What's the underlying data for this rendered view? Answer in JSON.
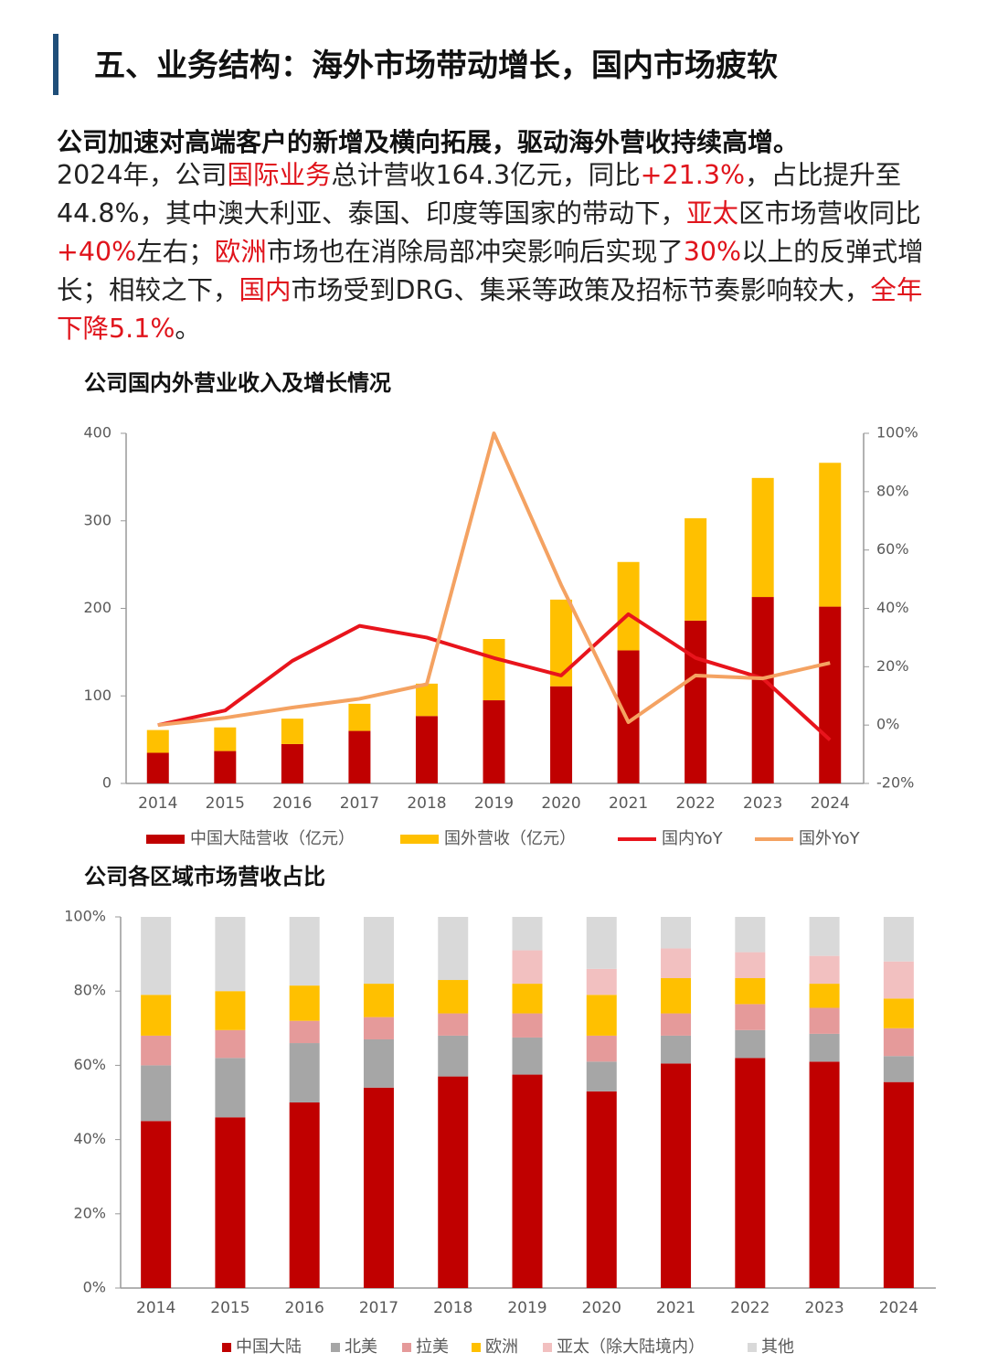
{
  "header": {
    "title": "五、业务结构：海外市场带动增长，国内市场疲软"
  },
  "lead": "公司加速对高端客户的新增及横向拓展，驱动海外营收持续高增。",
  "body": [
    {
      "text": "2024年，公司"
    },
    {
      "text": "国际业务",
      "highlight": true
    },
    {
      "text": "总计营收164.3亿元，同比"
    },
    {
      "text": "+21.3%",
      "highlight": true
    },
    {
      "text": "，占比提升至44.8%，其中澳大利亚、泰国、印度等国家的带动下，"
    },
    {
      "text": "亚太",
      "highlight": true
    },
    {
      "text": "区市场营收同比"
    },
    {
      "text": "+40%",
      "highlight": true
    },
    {
      "text": "左右；"
    },
    {
      "text": "欧洲",
      "highlight": true
    },
    {
      "text": "市场也在消除局部冲突影响后实现了"
    },
    {
      "text": "30%",
      "highlight": true
    },
    {
      "text": "以上的反弹式增长；相较之下，"
    },
    {
      "text": "国内",
      "highlight": true
    },
    {
      "text": "市场受到DRG、集采等政策及招标节奏影响较大，"
    },
    {
      "text": "全年下降5.1%",
      "highlight": true
    },
    {
      "text": "。"
    }
  ],
  "chart_data": [
    {
      "type": "bar",
      "stacked": true,
      "title": "公司国内外营业收入及增长情况",
      "categories": [
        "2014",
        "2015",
        "2016",
        "2017",
        "2018",
        "2019",
        "2020",
        "2021",
        "2022",
        "2023",
        "2024"
      ],
      "series": [
        {
          "name": "中国大陆营收（亿元）",
          "color": "#c00000",
          "values": [
            35,
            37,
            45,
            60,
            77,
            95,
            111,
            152,
            186,
            213,
            202
          ]
        },
        {
          "name": "国外营收（亿元）",
          "color": "#ffc000",
          "values": [
            26,
            27,
            29,
            31,
            37,
            70,
            99,
            101,
            117,
            136,
            164.3
          ]
        },
        {
          "name": "国内YoY",
          "type": "line",
          "axis": "y2",
          "color": "#e8141c",
          "values": [
            0,
            5,
            22,
            34,
            30,
            23,
            17,
            38,
            23,
            16,
            -5.1
          ]
        },
        {
          "name": "国外YoY",
          "type": "line",
          "axis": "y2",
          "color": "#f4a262",
          "values": [
            0,
            2.5,
            6,
            9,
            14,
            100,
            48,
            1,
            17,
            16,
            21.3
          ]
        }
      ],
      "ylim": [
        0,
        400
      ],
      "yticks": [
        0,
        100,
        200,
        300,
        400
      ],
      "y2lim": [
        -20,
        100
      ],
      "y2ticks": [
        {
          "value": -20,
          "label": "-20%"
        },
        {
          "value": 0,
          "label": "0%"
        },
        {
          "value": 20,
          "label": "20%"
        },
        {
          "value": 40,
          "label": "40%"
        },
        {
          "value": 60,
          "label": "60%"
        },
        {
          "value": 80,
          "label": "80%"
        },
        {
          "value": 100,
          "label": "100%"
        }
      ]
    },
    {
      "type": "bar",
      "stacked": true,
      "title": "公司各区域市场营收占比",
      "categories": [
        "2014",
        "2015",
        "2016",
        "2017",
        "2018",
        "2019",
        "2020",
        "2021",
        "2022",
        "2023",
        "2024"
      ],
      "series": [
        {
          "name": "中国大陆",
          "color": "#c00000",
          "values": [
            45,
            46,
            50,
            54,
            57,
            57.5,
            53,
            60.5,
            62,
            61,
            55.5
          ]
        },
        {
          "name": "北美",
          "color": "#a6a6a6",
          "values": [
            15,
            16,
            16,
            13,
            11,
            10,
            8,
            7.5,
            7.5,
            7.5,
            7
          ]
        },
        {
          "name": "拉美",
          "color": "#e59a9a",
          "values": [
            8,
            7.5,
            6,
            6,
            6,
            6.5,
            7,
            6,
            7,
            7,
            7.5
          ]
        },
        {
          "name": "欧洲",
          "color": "#ffc000",
          "values": [
            11,
            10.5,
            9.5,
            9,
            9,
            8,
            11,
            9.5,
            7,
            6.5,
            8
          ]
        },
        {
          "name": "亚太（除大陆境内）",
          "color": "#f2c0c0",
          "values": [
            0,
            0,
            0,
            0,
            0,
            9,
            7,
            8,
            7,
            7.5,
            10
          ]
        },
        {
          "name": "其他",
          "color": "#d9d9d9",
          "values": [
            21,
            20,
            18.5,
            18,
            17,
            9,
            14,
            8.5,
            9.5,
            10.5,
            12
          ]
        }
      ],
      "ylim": [
        0,
        100
      ],
      "yticks": [
        {
          "value": 0,
          "label": "0%"
        },
        {
          "value": 20,
          "label": "20%"
        },
        {
          "value": 40,
          "label": "40%"
        },
        {
          "value": 60,
          "label": "60%"
        },
        {
          "value": 80,
          "label": "80%"
        },
        {
          "value": 100,
          "label": "100%"
        }
      ]
    }
  ]
}
